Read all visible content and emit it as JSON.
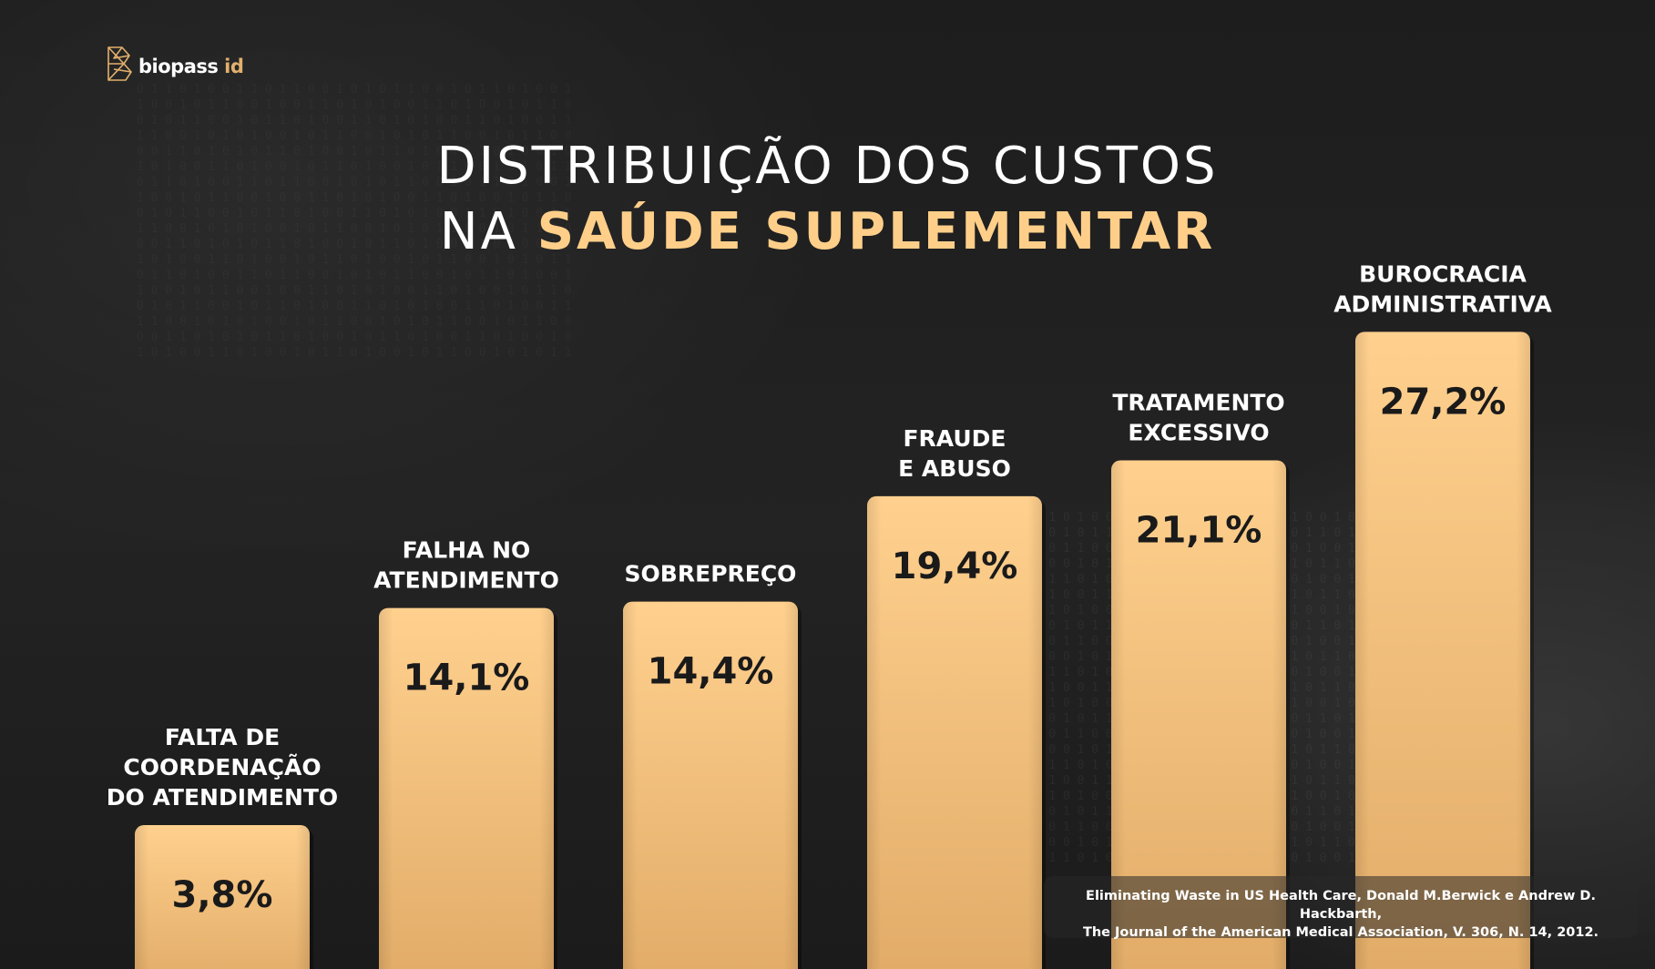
{
  "brand": {
    "name_main": "biopass",
    "name_accent": " id",
    "logo_icon": "geometric-b-icon"
  },
  "heading": {
    "line1": "DISTRIBUIÇÃO DOS CUSTOS",
    "line2_plain": "NA ",
    "line2_highlight": "SAÚDE SUPLEMENTAR"
  },
  "colors": {
    "background": "#1d1d1d",
    "accent": "#ffcf8a",
    "bar_top": "#ffd08e",
    "bar_bottom": "#e1ab67",
    "bar_text": "#1a1a1a",
    "label_text": "#ffffff"
  },
  "chart_data": {
    "type": "bar",
    "categories": [
      [
        "FALTA DE",
        "COORDENAÇÃO",
        "DO ATENDIMENTO"
      ],
      [
        "FALHA NO",
        "ATENDIMENTO"
      ],
      [
        "SOBREPREÇO"
      ],
      [
        "FRAUDE",
        "E ABUSO"
      ],
      [
        "TRATAMENTO",
        "EXCESSIVO"
      ],
      [
        "BUROCRACIA",
        "ADMINISTRATIVA"
      ]
    ],
    "values": [
      3.8,
      14.1,
      14.4,
      19.4,
      21.1,
      27.2
    ],
    "value_labels": [
      "3,8%",
      "14,1%",
      "14,4%",
      "19,4%",
      "21,1%",
      "27,2%"
    ],
    "title": "DISTRIBUIÇÃO DOS CUSTOS NA SAÚDE SUPLEMENTAR",
    "xlabel": "",
    "ylabel": "",
    "grid": false,
    "legend": "none"
  },
  "source": {
    "line1": "Eliminating Waste in US Health Care, Donald M.Berwick e Andrew D. Hackbarth,",
    "line2": "The Journal of the American Medical Association, V. 306, N. 14, 2012."
  }
}
